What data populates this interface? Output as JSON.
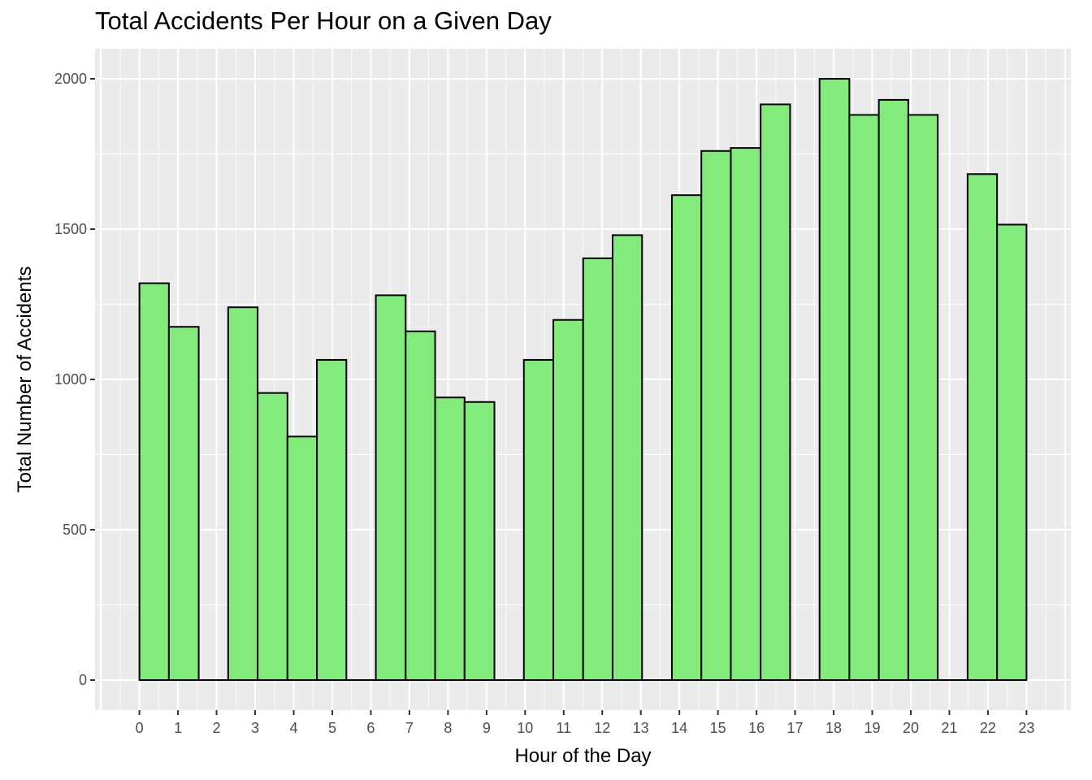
{
  "chart_data": {
    "type": "bar",
    "title": "Total Accidents Per Hour on a Given Day",
    "xlabel": "Hour of the Day",
    "ylabel": "Total Number of Accidents",
    "x_tick_labels": [
      "0",
      "1",
      "2",
      "3",
      "4",
      "5",
      "6",
      "7",
      "8",
      "9",
      "10",
      "11",
      "12",
      "13",
      "14",
      "15",
      "16",
      "17",
      "18",
      "19",
      "20",
      "21",
      "22",
      "23"
    ],
    "bins": [
      {
        "start": 0.0,
        "end": 0.79,
        "value": 1320
      },
      {
        "start": 0.79,
        "end": 1.59,
        "value": 1175
      },
      {
        "start": 1.59,
        "end": 2.38,
        "value": 0
      },
      {
        "start": 2.38,
        "end": 3.17,
        "value": 1240
      },
      {
        "start": 3.17,
        "end": 3.97,
        "value": 955
      },
      {
        "start": 3.97,
        "end": 4.76,
        "value": 810
      },
      {
        "start": 4.76,
        "end": 5.55,
        "value": 1065
      },
      {
        "start": 5.55,
        "end": 6.34,
        "value": 0
      },
      {
        "start": 6.34,
        "end": 7.14,
        "value": 1280
      },
      {
        "start": 7.14,
        "end": 7.93,
        "value": 1160
      },
      {
        "start": 7.93,
        "end": 8.72,
        "value": 940
      },
      {
        "start": 8.72,
        "end": 9.52,
        "value": 925
      },
      {
        "start": 9.52,
        "end": 10.31,
        "value": 0
      },
      {
        "start": 10.31,
        "end": 11.1,
        "value": 1065
      },
      {
        "start": 11.1,
        "end": 11.9,
        "value": 1198
      },
      {
        "start": 11.9,
        "end": 12.69,
        "value": 1403
      },
      {
        "start": 12.69,
        "end": 13.48,
        "value": 1480
      },
      {
        "start": 13.48,
        "end": 14.28,
        "value": 0
      },
      {
        "start": 14.28,
        "end": 15.07,
        "value": 1613
      },
      {
        "start": 15.07,
        "end": 15.86,
        "value": 1760
      },
      {
        "start": 15.86,
        "end": 16.66,
        "value": 1770
      },
      {
        "start": 16.66,
        "end": 17.45,
        "value": 1915
      },
      {
        "start": 17.45,
        "end": 18.24,
        "value": 0
      },
      {
        "start": 18.24,
        "end": 19.04,
        "value": 2000
      },
      {
        "start": 19.04,
        "end": 19.83,
        "value": 1880
      },
      {
        "start": 19.83,
        "end": 20.62,
        "value": 1930
      },
      {
        "start": 20.62,
        "end": 21.41,
        "value": 1880
      },
      {
        "start": 21.41,
        "end": 22.21,
        "value": 0
      },
      {
        "start": 22.21,
        "end": 23.0,
        "value": 1683
      },
      {
        "start": 23.0,
        "end": 23.79,
        "value": 1515
      }
    ],
    "y_ticks": [
      0,
      500,
      1000,
      1500,
      2000
    ],
    "ylim": [
      -100,
      2100
    ],
    "xlim": [
      -1.19,
      24.98
    ],
    "grid": true,
    "colors": {
      "bar_fill": "#82eb7b",
      "bar_stroke": "#000000",
      "panel_bg": "#ebebeb",
      "grid": "#ffffff"
    }
  }
}
